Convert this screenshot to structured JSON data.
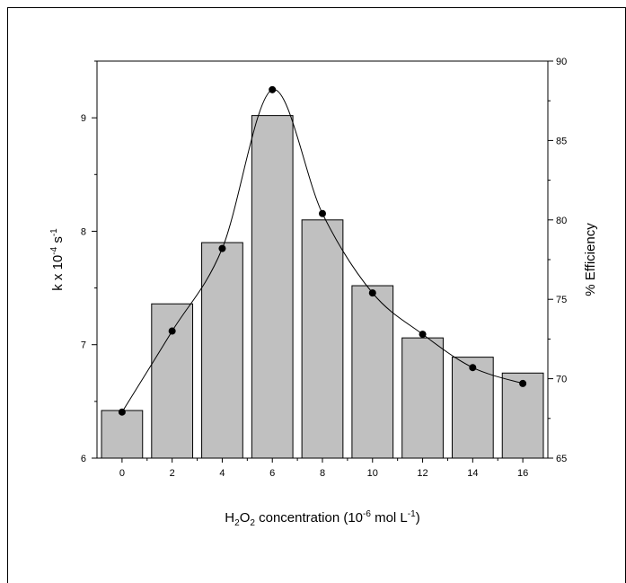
{
  "chart_data": {
    "type": "bar",
    "categories": [
      "0",
      "2",
      "4",
      "6",
      "8",
      "10",
      "12",
      "14",
      "16"
    ],
    "x": [
      0,
      2,
      4,
      6,
      8,
      10,
      12,
      14,
      16
    ],
    "series": [
      {
        "type": "bar",
        "axis": "left",
        "values": [
          6.42,
          7.36,
          7.9,
          9.02,
          8.1,
          7.52,
          7.06,
          6.89,
          6.75
        ],
        "color": "#c0c0c0"
      },
      {
        "type": "line",
        "axis": "right",
        "values": [
          67.9,
          73.0,
          78.2,
          88.2,
          80.4,
          75.4,
          72.8,
          70.7,
          69.7
        ],
        "color": "#000000",
        "marker": "circle"
      }
    ],
    "xlim": [
      -1,
      17
    ],
    "ylim": [
      6,
      9.5
    ],
    "y2lim": [
      65,
      90
    ],
    "xticks": [
      "0",
      "2",
      "4",
      "6",
      "8",
      "10",
      "12",
      "14",
      "16"
    ],
    "yticks": [
      "6",
      "7",
      "8",
      "9"
    ],
    "y2ticks": [
      "65",
      "70",
      "75",
      "80",
      "85",
      "90"
    ],
    "xlabel": {
      "main": "H",
      "sub1": "2",
      "mid": "O",
      "sub2": "2",
      "text": " concentration (10",
      "sup1": "-6",
      "unit": " mol L",
      "sup2": "-1",
      "end": ")"
    },
    "ylabel": {
      "main": "k x 10",
      "sup1": "-4",
      "unit": " s",
      "sup2": "-1"
    },
    "y2label": "% Efficiency",
    "grid": false,
    "legend": "none"
  }
}
